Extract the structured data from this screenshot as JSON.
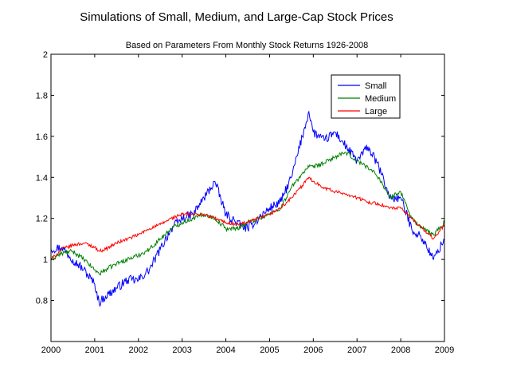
{
  "chart_data": {
    "type": "line",
    "title": "Simulations of Small, Medium, and Large-Cap Stock Prices",
    "subtitle": "Based on Parameters From Monthly Stock Returns 1926-2008",
    "xlabel": "",
    "ylabel": "",
    "xlim": [
      2000,
      2009
    ],
    "ylim": [
      0.6,
      2.0
    ],
    "xticks": [
      "2000",
      "2001",
      "2002",
      "2003",
      "2004",
      "2005",
      "2006",
      "2007",
      "2008",
      "2009"
    ],
    "yticks": [
      "0.8",
      "1",
      "1.2",
      "1.4",
      "1.6",
      "1.8",
      "2"
    ],
    "ytick_values": [
      0.8,
      1.0,
      1.2,
      1.4,
      1.6,
      1.8,
      2.0
    ],
    "grid": false,
    "legend_position": "top-right",
    "x": [
      2000.0,
      2000.25,
      2000.5,
      2000.75,
      2001.0,
      2001.1,
      2001.25,
      2001.5,
      2001.75,
      2002.0,
      2002.25,
      2002.5,
      2002.75,
      2003.0,
      2003.25,
      2003.5,
      2003.75,
      2004.0,
      2004.25,
      2004.5,
      2004.75,
      2005.0,
      2005.25,
      2005.5,
      2005.75,
      2005.9,
      2006.0,
      2006.25,
      2006.5,
      2006.75,
      2007.0,
      2007.25,
      2007.5,
      2007.75,
      2008.0,
      2008.25,
      2008.5,
      2008.75,
      2009.0
    ],
    "series": [
      {
        "name": "Small",
        "color": "#0000ff",
        "values": [
          1.05,
          1.06,
          1.0,
          0.95,
          0.88,
          0.79,
          0.82,
          0.86,
          0.9,
          0.9,
          0.95,
          1.05,
          1.15,
          1.2,
          1.22,
          1.3,
          1.38,
          1.22,
          1.18,
          1.15,
          1.2,
          1.25,
          1.28,
          1.4,
          1.6,
          1.72,
          1.62,
          1.58,
          1.62,
          1.55,
          1.48,
          1.55,
          1.45,
          1.3,
          1.3,
          1.15,
          1.1,
          1.0,
          1.1
        ]
      },
      {
        "name": "Medium",
        "color": "#008000",
        "values": [
          1.0,
          1.03,
          1.04,
          1.0,
          0.95,
          0.93,
          0.95,
          0.98,
          1.0,
          1.02,
          1.05,
          1.1,
          1.15,
          1.18,
          1.2,
          1.22,
          1.2,
          1.15,
          1.15,
          1.18,
          1.2,
          1.22,
          1.25,
          1.35,
          1.42,
          1.45,
          1.45,
          1.47,
          1.5,
          1.52,
          1.48,
          1.45,
          1.4,
          1.3,
          1.33,
          1.2,
          1.15,
          1.12,
          1.18
        ]
      },
      {
        "name": "Large",
        "color": "#ff0000",
        "values": [
          1.0,
          1.05,
          1.07,
          1.08,
          1.06,
          1.04,
          1.05,
          1.08,
          1.1,
          1.12,
          1.15,
          1.17,
          1.2,
          1.22,
          1.22,
          1.22,
          1.2,
          1.18,
          1.17,
          1.18,
          1.2,
          1.22,
          1.25,
          1.3,
          1.36,
          1.4,
          1.38,
          1.35,
          1.33,
          1.32,
          1.3,
          1.28,
          1.27,
          1.25,
          1.25,
          1.2,
          1.15,
          1.1,
          1.17
        ]
      }
    ]
  }
}
